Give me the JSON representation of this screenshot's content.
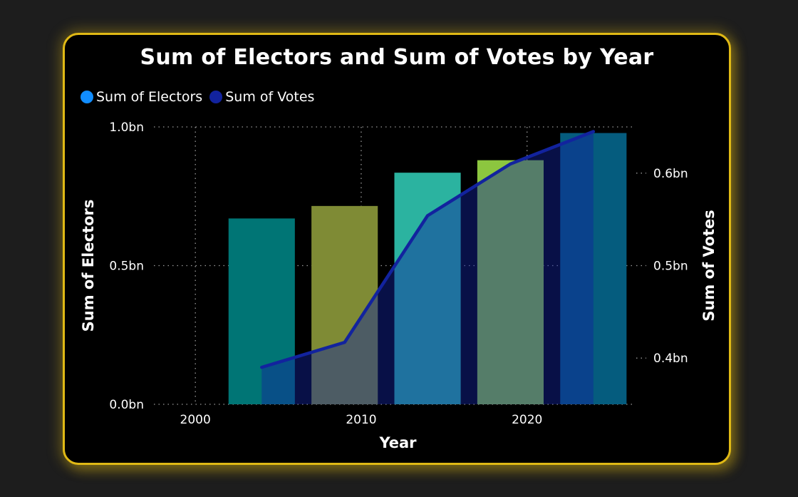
{
  "chart_data": {
    "type": "bar",
    "title": "Sum of Electors and Sum of Votes by Year",
    "xlabel": "Year",
    "ylabel": "Sum of Electors",
    "y2label": "Sum of Votes",
    "x_ticks": [
      "2000",
      "2010",
      "2020"
    ],
    "xlim": [
      1997.5,
      2026.5
    ],
    "ylim": [
      0,
      1.0
    ],
    "y2lim": [
      0.35,
      0.65
    ],
    "y_ticks": [
      {
        "v": 0.0,
        "label": "0.0bn"
      },
      {
        "v": 0.5,
        "label": "0.5bn"
      },
      {
        "v": 1.0,
        "label": "1.0bn"
      }
    ],
    "y2_ticks": [
      {
        "v": 0.4,
        "label": "0.4bn"
      },
      {
        "v": 0.5,
        "label": "0.5bn"
      },
      {
        "v": 0.6,
        "label": "0.6bn"
      }
    ],
    "legend_position": "top-left",
    "grid": true,
    "series": [
      {
        "name": "Sum of Electors",
        "kind": "bar",
        "color": "#118dff",
        "x": [
          2004,
          2009,
          2014,
          2019,
          2024
        ],
        "values": [
          0.67,
          0.715,
          0.835,
          0.88,
          0.978
        ],
        "bar_colors": [
          "#007575",
          "#7f8b35",
          "#2bb3a0",
          "#8cc63f",
          "#055c7e"
        ]
      },
      {
        "name": "Sum of Votes",
        "kind": "line",
        "color": "#12239e",
        "x": [
          2004,
          2009,
          2014,
          2019,
          2024
        ],
        "values": [
          0.39,
          0.417,
          0.554,
          0.61,
          0.645
        ]
      }
    ]
  }
}
